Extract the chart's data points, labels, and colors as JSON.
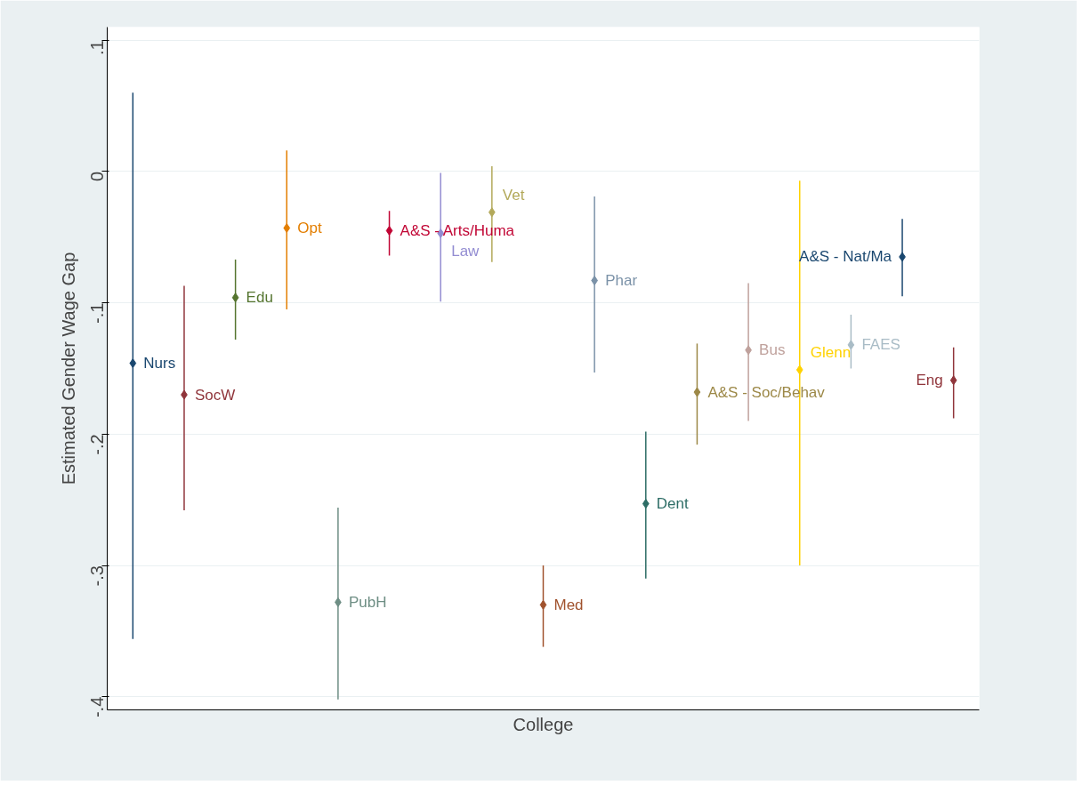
{
  "chart_data": {
    "type": "scatter",
    "xlabel": "College",
    "ylabel": "Estimated Gender Wage Gap",
    "categories": [
      null,
      null,
      null,
      null,
      null,
      null,
      null,
      null,
      null,
      null,
      null,
      null,
      null,
      null,
      null,
      null,
      null
    ],
    "series": [
      {
        "name": "Nurs",
        "color": "#1a476f",
        "values": [
          -0.146,
          null,
          null,
          null,
          null,
          null,
          null,
          null,
          null,
          null,
          null,
          null,
          null,
          null,
          null,
          null,
          null
        ],
        "errors": [
          [
            -0.356,
            0.06
          ],
          null,
          null,
          null,
          null,
          null,
          null,
          null,
          null,
          null,
          null,
          null,
          null,
          null,
          null,
          null,
          null
        ]
      },
      {
        "name": "SocW",
        "color": "#90353b",
        "values": [
          null,
          -0.17,
          null,
          null,
          null,
          null,
          null,
          null,
          null,
          null,
          null,
          null,
          null,
          null,
          null,
          null,
          null
        ],
        "errors": [
          null,
          [
            -0.258,
            -0.087
          ],
          null,
          null,
          null,
          null,
          null,
          null,
          null,
          null,
          null,
          null,
          null,
          null,
          null,
          null,
          null
        ]
      },
      {
        "name": "Edu",
        "color": "#55752f",
        "values": [
          null,
          null,
          -0.096,
          null,
          null,
          null,
          null,
          null,
          null,
          null,
          null,
          null,
          null,
          null,
          null,
          null,
          null
        ],
        "errors": [
          null,
          null,
          [
            -0.128,
            -0.067
          ],
          null,
          null,
          null,
          null,
          null,
          null,
          null,
          null,
          null,
          null,
          null,
          null,
          null,
          null
        ]
      },
      {
        "name": "Opt",
        "color": "#e37e00",
        "values": [
          null,
          null,
          null,
          -0.043,
          null,
          null,
          null,
          null,
          null,
          null,
          null,
          null,
          null,
          null,
          null,
          null,
          null
        ],
        "errors": [
          null,
          null,
          null,
          [
            -0.105,
            0.016
          ],
          null,
          null,
          null,
          null,
          null,
          null,
          null,
          null,
          null,
          null,
          null,
          null,
          null
        ]
      },
      {
        "name": "PubH",
        "color": "#6e8e84",
        "values": [
          null,
          null,
          null,
          null,
          -0.328,
          null,
          null,
          null,
          null,
          null,
          null,
          null,
          null,
          null,
          null,
          null,
          null
        ],
        "errors": [
          null,
          null,
          null,
          null,
          [
            -0.402,
            -0.256
          ],
          null,
          null,
          null,
          null,
          null,
          null,
          null,
          null,
          null,
          null,
          null,
          null
        ]
      },
      {
        "name": "A&S - Arts/Huma",
        "color": "#c10534",
        "values": [
          null,
          null,
          null,
          null,
          null,
          -0.045,
          null,
          null,
          null,
          null,
          null,
          null,
          null,
          null,
          null,
          null,
          null
        ],
        "errors": [
          null,
          null,
          null,
          null,
          null,
          [
            -0.064,
            -0.03
          ],
          null,
          null,
          null,
          null,
          null,
          null,
          null,
          null,
          null,
          null,
          null
        ]
      },
      {
        "name": "Law",
        "color": "#938dd2",
        "values": [
          null,
          null,
          null,
          null,
          null,
          null,
          -0.047,
          null,
          null,
          null,
          null,
          null,
          null,
          null,
          null,
          null,
          null
        ],
        "errors": [
          null,
          null,
          null,
          null,
          null,
          null,
          [
            -0.099,
            -0.001
          ],
          null,
          null,
          null,
          null,
          null,
          null,
          null,
          null,
          null,
          null
        ]
      },
      {
        "name": "Vet",
        "color": "#b3a95a",
        "values": [
          null,
          null,
          null,
          null,
          null,
          null,
          null,
          -0.031,
          null,
          null,
          null,
          null,
          null,
          null,
          null,
          null,
          null
        ],
        "errors": [
          null,
          null,
          null,
          null,
          null,
          null,
          null,
          [
            -0.069,
            0.004
          ],
          null,
          null,
          null,
          null,
          null,
          null,
          null,
          null,
          null
        ]
      },
      {
        "name": "Med",
        "color": "#a0522d",
        "values": [
          null,
          null,
          null,
          null,
          null,
          null,
          null,
          null,
          -0.33,
          null,
          null,
          null,
          null,
          null,
          null,
          null,
          null
        ],
        "errors": [
          null,
          null,
          null,
          null,
          null,
          null,
          null,
          null,
          [
            -0.362,
            -0.3
          ],
          null,
          null,
          null,
          null,
          null,
          null,
          null,
          null
        ]
      },
      {
        "name": "Phar",
        "color": "#7b92a8",
        "values": [
          null,
          null,
          null,
          null,
          null,
          null,
          null,
          null,
          null,
          -0.083,
          null,
          null,
          null,
          null,
          null,
          null,
          null
        ],
        "errors": [
          null,
          null,
          null,
          null,
          null,
          null,
          null,
          null,
          null,
          [
            -0.153,
            -0.019
          ],
          null,
          null,
          null,
          null,
          null,
          null,
          null
        ]
      },
      {
        "name": "Dent",
        "color": "#2d6d66",
        "values": [
          null,
          null,
          null,
          null,
          null,
          null,
          null,
          null,
          null,
          null,
          -0.253,
          null,
          null,
          null,
          null,
          null,
          null
        ],
        "errors": [
          null,
          null,
          null,
          null,
          null,
          null,
          null,
          null,
          null,
          null,
          [
            -0.31,
            -0.198
          ],
          null,
          null,
          null,
          null,
          null,
          null
        ]
      },
      {
        "name": "A&S - Soc/Behav",
        "color": "#9c8847",
        "values": [
          null,
          null,
          null,
          null,
          null,
          null,
          null,
          null,
          null,
          null,
          null,
          -0.168,
          null,
          null,
          null,
          null,
          null
        ],
        "errors": [
          null,
          null,
          null,
          null,
          null,
          null,
          null,
          null,
          null,
          null,
          null,
          [
            -0.208,
            -0.131
          ],
          null,
          null,
          null,
          null,
          null
        ]
      },
      {
        "name": "Bus",
        "color": "#bfa19c",
        "values": [
          null,
          null,
          null,
          null,
          null,
          null,
          null,
          null,
          null,
          null,
          null,
          null,
          -0.136,
          null,
          null,
          null,
          null
        ],
        "errors": [
          null,
          null,
          null,
          null,
          null,
          null,
          null,
          null,
          null,
          null,
          null,
          null,
          [
            -0.19,
            -0.085
          ],
          null,
          null,
          null,
          null
        ]
      },
      {
        "name": "Glenn",
        "color": "#ffd200",
        "values": [
          null,
          null,
          null,
          null,
          null,
          null,
          null,
          null,
          null,
          null,
          null,
          null,
          null,
          -0.151,
          null,
          null,
          null
        ],
        "errors": [
          null,
          null,
          null,
          null,
          null,
          null,
          null,
          null,
          null,
          null,
          null,
          null,
          null,
          [
            -0.3,
            -0.007
          ],
          null,
          null,
          null
        ]
      },
      {
        "name": "FAES",
        "color": "#a9bcc6",
        "values": [
          null,
          null,
          null,
          null,
          null,
          null,
          null,
          null,
          null,
          null,
          null,
          null,
          null,
          null,
          -0.132,
          null,
          null
        ],
        "errors": [
          null,
          null,
          null,
          null,
          null,
          null,
          null,
          null,
          null,
          null,
          null,
          null,
          null,
          null,
          [
            -0.15,
            -0.109
          ],
          null,
          null
        ]
      },
      {
        "name": "A&S - Nat/Ma",
        "color": "#1a476f",
        "values": [
          null,
          null,
          null,
          null,
          null,
          null,
          null,
          null,
          null,
          null,
          null,
          null,
          null,
          null,
          null,
          -0.065,
          null
        ],
        "errors": [
          null,
          null,
          null,
          null,
          null,
          null,
          null,
          null,
          null,
          null,
          null,
          null,
          null,
          null,
          null,
          [
            -0.095,
            -0.036
          ],
          null
        ]
      },
      {
        "name": "Eng",
        "color": "#90353b",
        "values": [
          null,
          null,
          null,
          null,
          null,
          null,
          null,
          null,
          null,
          null,
          null,
          null,
          null,
          null,
          null,
          null,
          -0.159
        ],
        "errors": [
          null,
          null,
          null,
          null,
          null,
          null,
          null,
          null,
          null,
          null,
          null,
          null,
          null,
          null,
          null,
          null,
          [
            -0.188,
            -0.134
          ]
        ]
      }
    ],
    "ylim": [
      -0.41,
      0.11
    ],
    "yticks": [
      {
        "value": -0.4,
        "label": "-.4"
      },
      {
        "value": -0.3,
        "label": "-.3"
      },
      {
        "value": -0.2,
        "label": "-.2"
      },
      {
        "value": -0.1,
        "label": "-.1"
      },
      0,
      {
        "value": 0.1,
        "label": ".1"
      }
    ],
    "grid": "y",
    "marker": "diamond"
  }
}
